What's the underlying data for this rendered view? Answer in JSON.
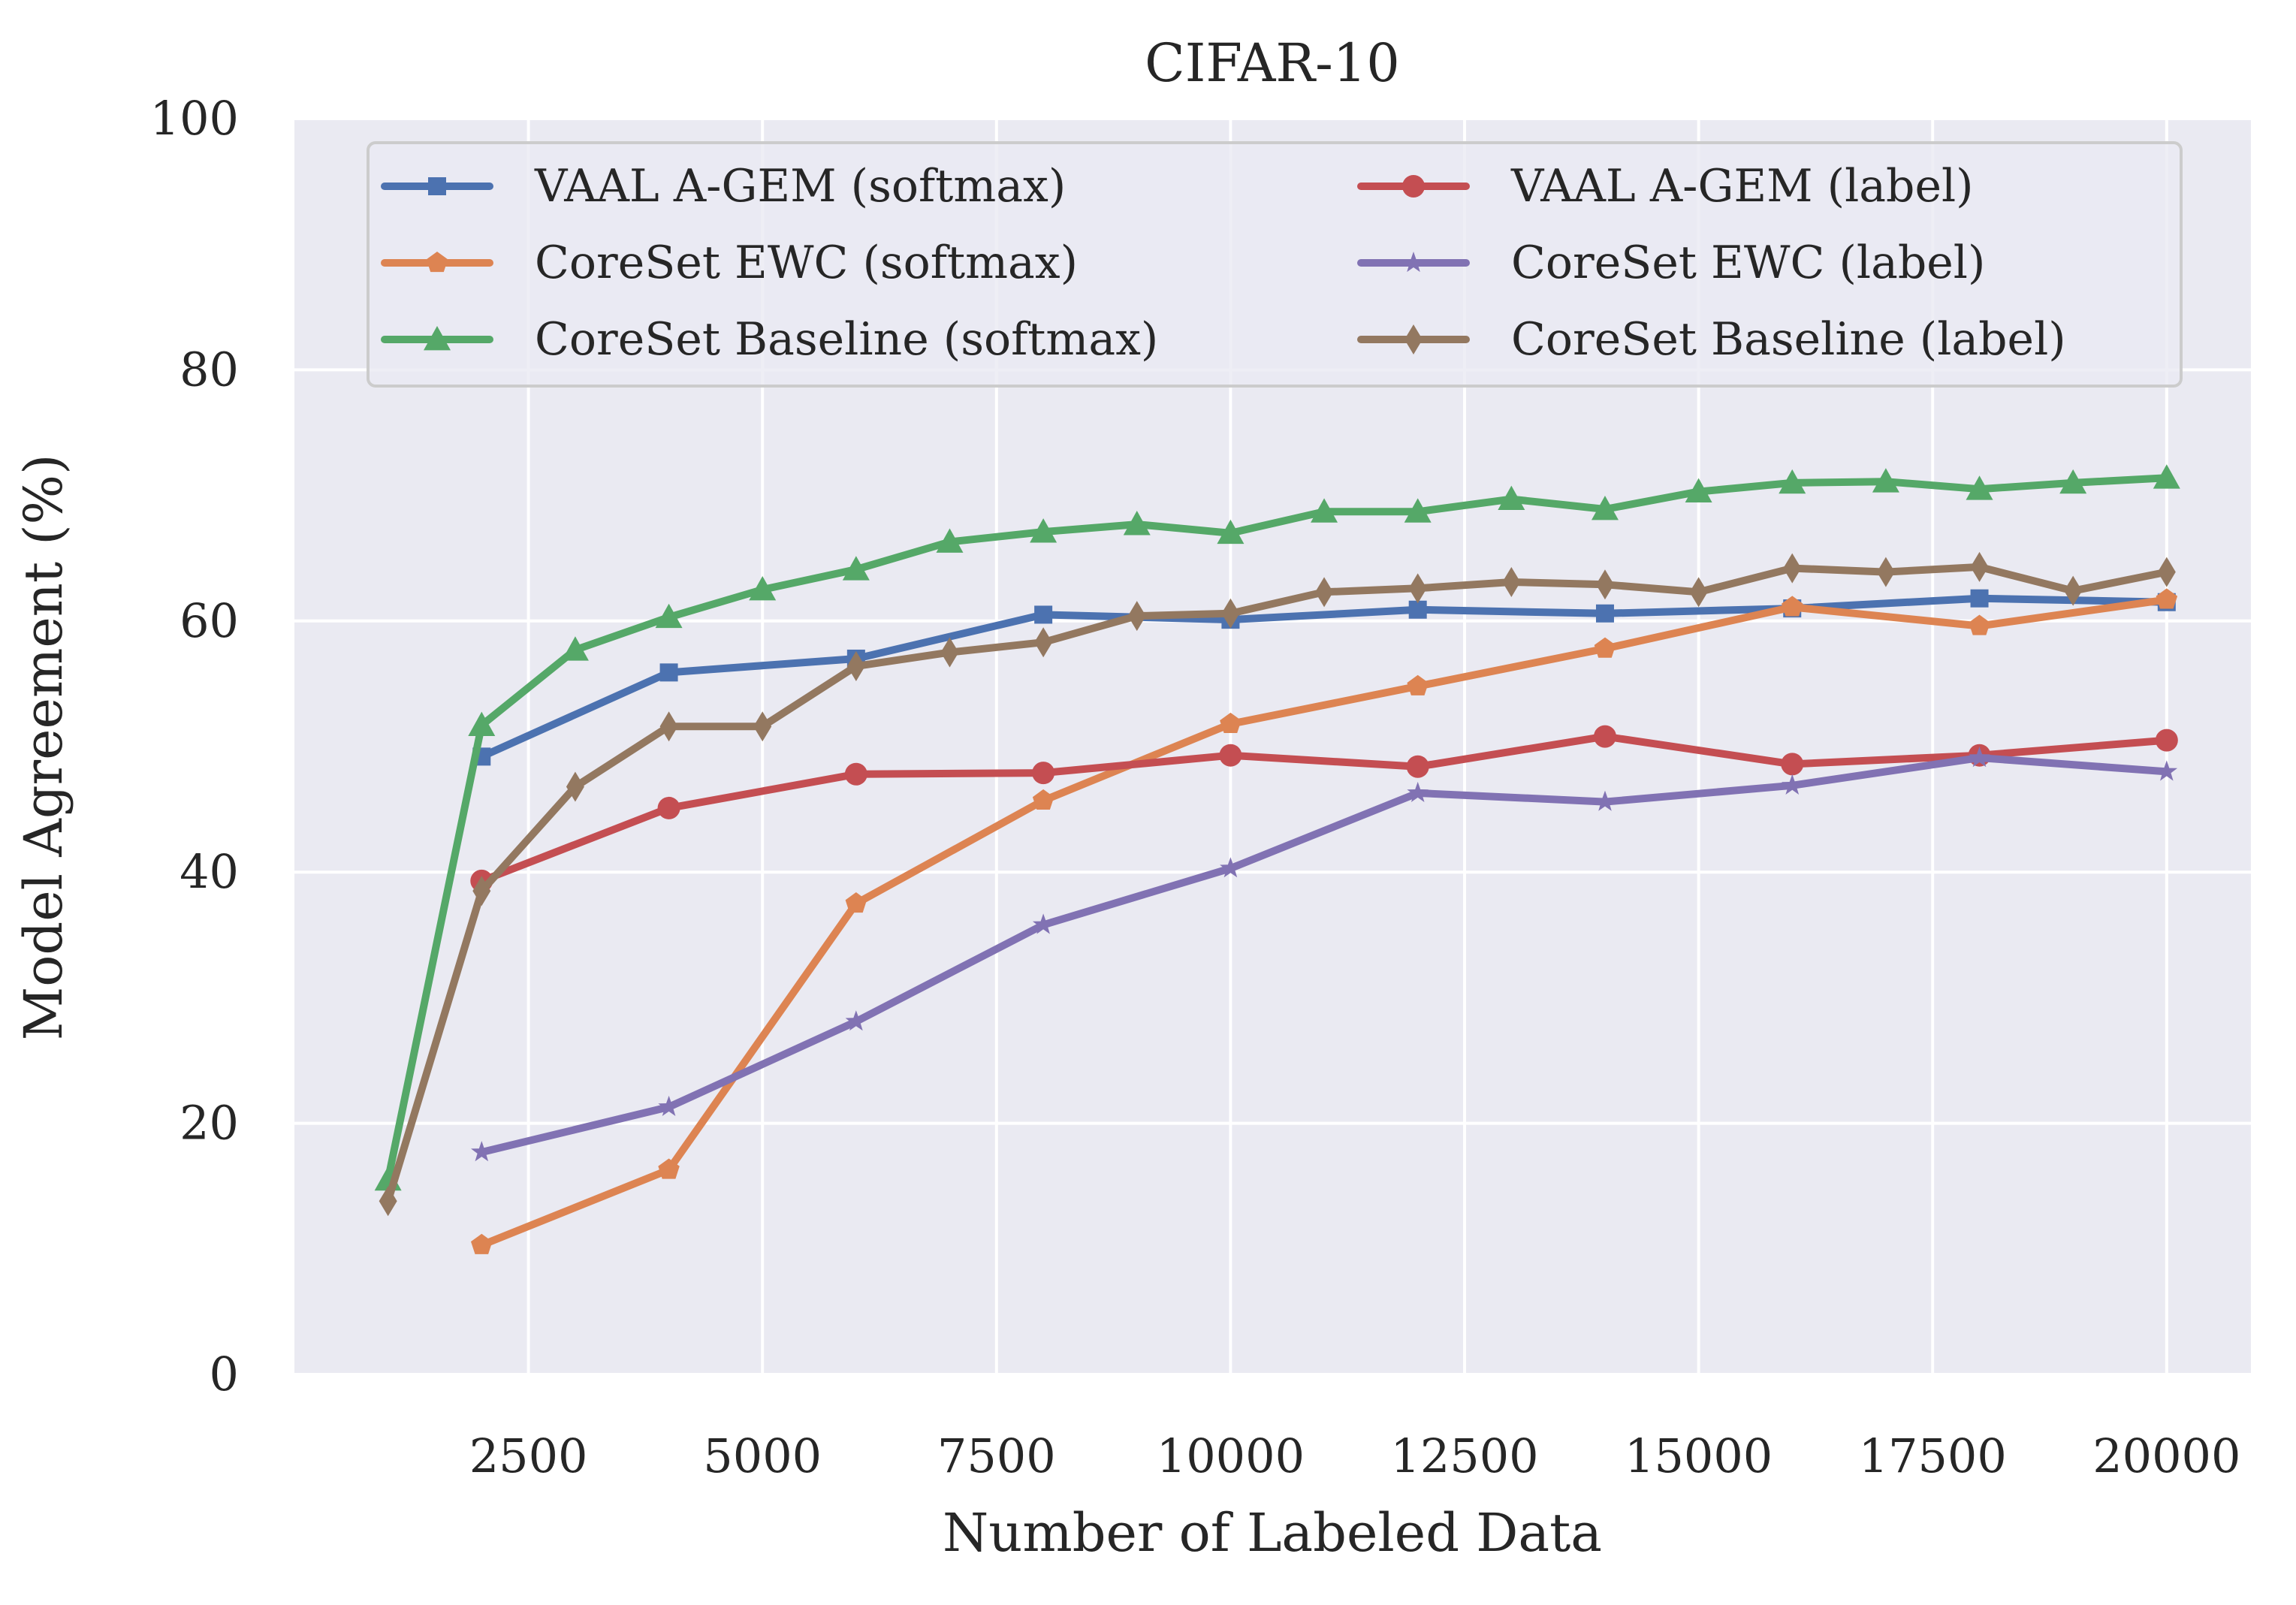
{
  "chart_data": {
    "type": "line",
    "title": "CIFAR-10",
    "xlabel": "Number of Labeled Data",
    "ylabel": "Model Agreement (%)",
    "xlim": [
      0,
      20900
    ],
    "ylim": [
      0,
      100
    ],
    "xticks": [
      2500,
      5000,
      7500,
      10000,
      12500,
      15000,
      17500,
      20000
    ],
    "yticks": [
      0,
      20,
      40,
      60,
      80,
      100
    ],
    "grid": true,
    "background": "#eaeaf2",
    "legend": {
      "placement": "top",
      "columns": 2
    },
    "series": [
      {
        "name": "VAAL A-GEM (softmax)",
        "color": "#4c72b0",
        "marker": "square",
        "x": [
          2000,
          4000,
          6000,
          8000,
          10000,
          12000,
          14000,
          16000,
          18000,
          20000
        ],
        "y": [
          49.2,
          55.9,
          57.0,
          60.5,
          60.1,
          60.9,
          60.6,
          61.0,
          61.8,
          61.5
        ]
      },
      {
        "name": "CoreSet EWC (softmax)",
        "color": "#dd8452",
        "marker": "pentagon",
        "x": [
          2000,
          4000,
          6000,
          8000,
          10000,
          12000,
          14000,
          16000,
          18000,
          20000
        ],
        "y": [
          10.3,
          16.3,
          37.5,
          45.7,
          51.8,
          54.8,
          57.8,
          61.1,
          59.6,
          61.7
        ]
      },
      {
        "name": "CoreSet Baseline (softmax)",
        "color": "#55a868",
        "marker": "triangle",
        "x": [
          1000,
          2000,
          3000,
          4000,
          5000,
          6000,
          7000,
          8000,
          9000,
          10000,
          11000,
          12000,
          13000,
          14000,
          15000,
          16000,
          17000,
          18000,
          19000,
          20000
        ],
        "y": [
          15.5,
          51.7,
          57.7,
          60.3,
          62.5,
          64.1,
          66.3,
          67.1,
          67.7,
          67.0,
          68.7,
          68.7,
          69.7,
          68.9,
          70.3,
          71.0,
          71.1,
          70.5,
          71.0,
          71.4
        ]
      },
      {
        "name": "VAAL A-GEM (label)",
        "color": "#c44e52",
        "marker": "circle",
        "x": [
          2000,
          4000,
          6000,
          8000,
          10000,
          12000,
          14000,
          16000,
          18000,
          20000
        ],
        "y": [
          39.3,
          45.1,
          47.8,
          47.9,
          49.3,
          48.4,
          50.8,
          48.6,
          49.3,
          50.5
        ]
      },
      {
        "name": "CoreSet EWC (label)",
        "color": "#8172b3",
        "marker": "star",
        "x": [
          2000,
          4000,
          6000,
          8000,
          10000,
          12000,
          14000,
          16000,
          18000,
          20000
        ],
        "y": [
          17.7,
          21.3,
          28.1,
          35.8,
          40.3,
          46.3,
          45.6,
          46.9,
          49.1,
          48.0
        ]
      },
      {
        "name": "CoreSet Baseline (label)",
        "color": "#937860",
        "marker": "diamond",
        "x": [
          1000,
          2000,
          3000,
          4000,
          5000,
          6000,
          7000,
          8000,
          9000,
          10000,
          11000,
          12000,
          13000,
          14000,
          15000,
          16000,
          17000,
          18000,
          19000,
          20000
        ],
        "y": [
          13.8,
          38.5,
          46.8,
          51.6,
          51.6,
          56.4,
          57.5,
          58.3,
          60.4,
          60.6,
          62.3,
          62.6,
          63.1,
          62.9,
          62.3,
          64.2,
          63.9,
          64.3,
          62.4,
          63.9
        ]
      }
    ]
  }
}
